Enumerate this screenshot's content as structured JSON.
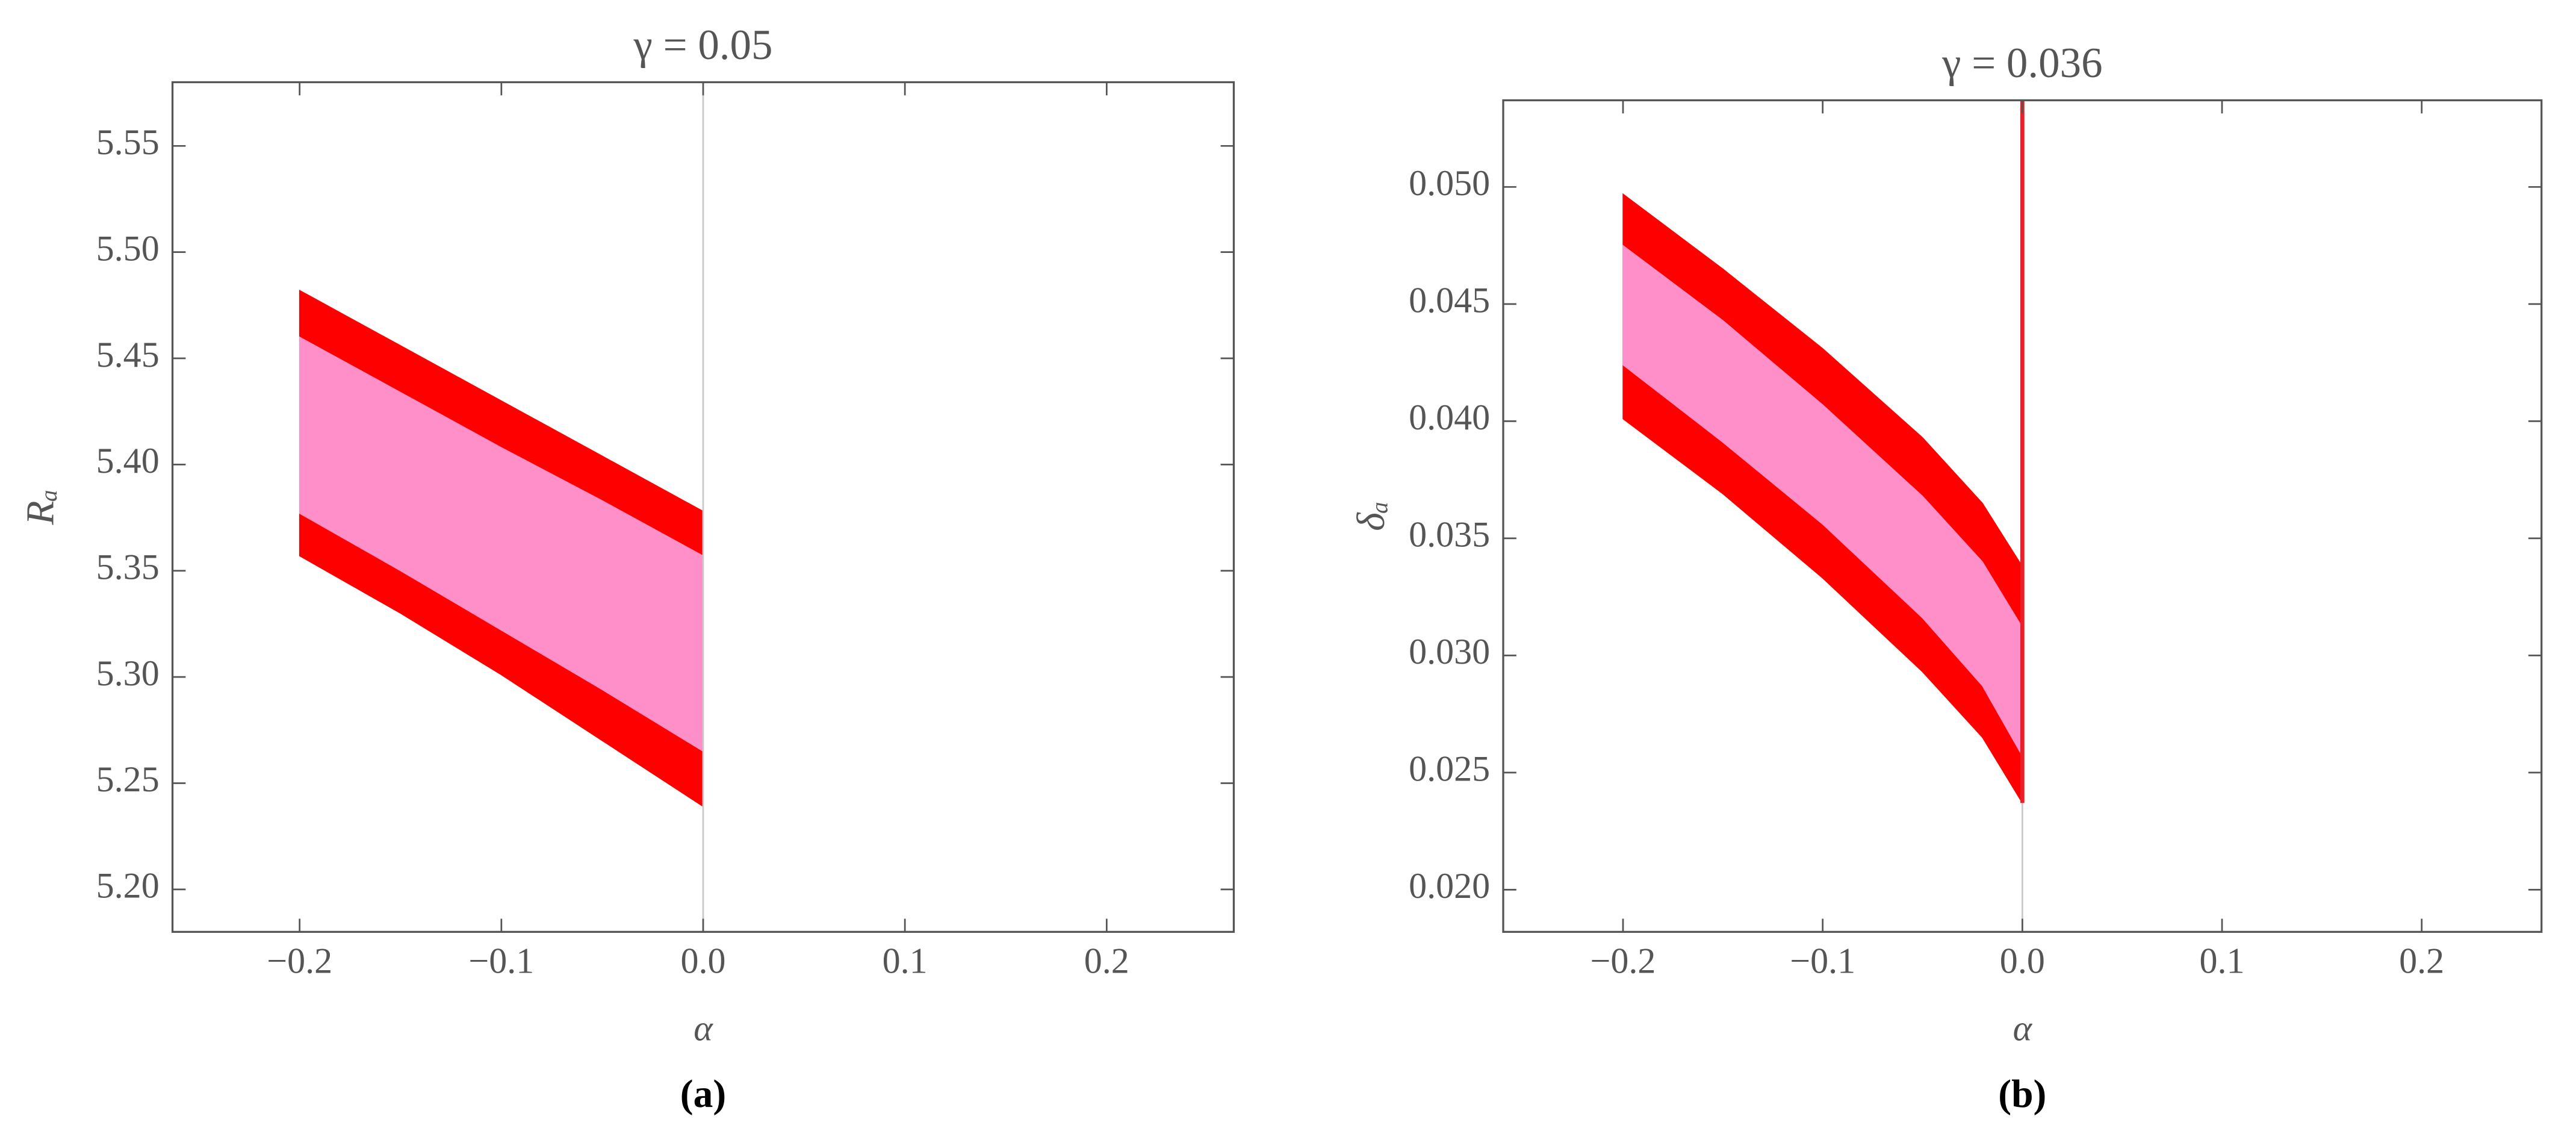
{
  "chart_data": [
    {
      "type": "band",
      "title": "γ = 0.05",
      "x_label": "α",
      "y_label": "Rₐ",
      "panel_label": "(a)",
      "x": [
        -0.2,
        -0.15,
        -0.1,
        -0.05,
        0
      ],
      "bands": [
        {
          "color": "#ff0000",
          "upper": [
            5.482,
            5.456,
            5.43,
            5.404,
            5.378
          ],
          "lower": [
            5.357,
            5.33,
            5.301,
            5.27,
            5.239
          ]
        },
        {
          "color": "#ff8fc8",
          "upper": [
            5.46,
            5.434,
            5.408,
            5.383,
            5.357
          ],
          "lower": [
            5.377,
            5.35,
            5.322,
            5.294,
            5.265
          ]
        }
      ],
      "vlines": [
        {
          "x": 0,
          "ylim": [
            5.18,
            5.58
          ],
          "color": "#c8c8c8"
        }
      ],
      "xlim": [
        -0.263,
        0.263
      ],
      "ylim": [
        5.18,
        5.58
      ],
      "xticks": [
        {
          "value": -0.2,
          "label": "−0.2"
        },
        {
          "value": -0.1,
          "label": "−0.1"
        },
        {
          "value": 0,
          "label": "0.0"
        },
        0.1,
        0.2
      ],
      "yticks": [
        {
          "value": 5.2,
          "label": "5.20"
        },
        5.25,
        {
          "value": 5.3,
          "label": "5.30"
        },
        5.35,
        {
          "value": 5.4,
          "label": "5.40"
        },
        5.45,
        {
          "value": 5.5,
          "label": "5.50"
        },
        5.55
      ]
    },
    {
      "type": "band",
      "title": "γ = 0.036",
      "x_label": "α",
      "y_label": "δₐ",
      "panel_label": "(b)",
      "x": [
        -0.2,
        -0.15,
        -0.1,
        -0.05,
        -0.02,
        0
      ],
      "bands": [
        {
          "color": "#ff0000",
          "upper": [
            0.0497,
            0.0465,
            0.0431,
            0.0393,
            0.0365,
            0.0338
          ],
          "lower": [
            0.0401,
            0.0369,
            0.0333,
            0.0293,
            0.0265,
            0.0237
          ]
        },
        {
          "color": "#ff8fc8",
          "upper": [
            0.0475,
            0.0443,
            0.0407,
            0.0368,
            0.034,
            0.0312
          ],
          "lower": [
            0.0424,
            0.0391,
            0.0356,
            0.0316,
            0.0287,
            0.0257
          ]
        }
      ],
      "vlines": [
        {
          "x": 0,
          "ylim": [
            0.0182,
            0.0237
          ],
          "color": "#c8c8c8"
        },
        {
          "x": 0,
          "ylim": [
            0.0237,
            0.0537
          ],
          "color": "#e8202a"
        }
      ],
      "xlim": [
        -0.26,
        0.26
      ],
      "ylim": [
        0.0182,
        0.0537
      ],
      "xticks": [
        {
          "value": -0.2,
          "label": "−0.2"
        },
        {
          "value": -0.1,
          "label": "−0.1"
        },
        {
          "value": 0,
          "label": "0.0"
        },
        0.1,
        0.2
      ],
      "yticks": [
        {
          "value": 0.02,
          "label": "0.020"
        },
        0.025,
        {
          "value": 0.03,
          "label": "0.030"
        },
        0.035,
        {
          "value": 0.04,
          "label": "0.040"
        },
        0.045,
        {
          "value": 0.05,
          "label": "0.050"
        }
      ]
    }
  ]
}
